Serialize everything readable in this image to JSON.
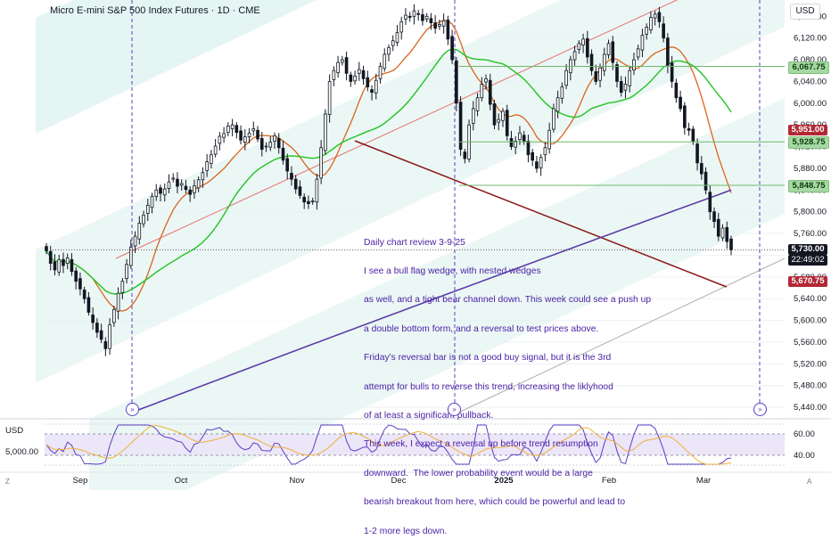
{
  "header": {
    "title": "Micro E-mini S&P 500 Index Futures · 1D · CME",
    "currency": "USD"
  },
  "annotation": {
    "lines": [
      "Daily chart review 3-9-25",
      "I see a bull flag wedge, with nested wedges",
      "as well, and a tight bear channel down. This week could see a push up",
      "a double bottom form, and a reversal to test prices above.",
      "Friday's reversal bar is not a good buy signal, but it is the 3rd",
      "attempt for bulls to reverse this trend, increasing the liklyhood",
      "of at least a significant pullback.",
      "This week, I expect a reversal up before trend resumption",
      "downward.  The lower probability event would be a large",
      "bearish breakout from here, which could be powerful and lead to",
      "1-2 more legs down."
    ]
  },
  "price_labels": [
    {
      "value": "6,067.75",
      "price": 6067.75,
      "style": "green"
    },
    {
      "value": "5,951.00",
      "price": 5951.0,
      "style": "red"
    },
    {
      "value": "5,928.75",
      "price": 5928.75,
      "style": "green"
    },
    {
      "value": "5,848.75",
      "price": 5848.75,
      "style": "green"
    },
    {
      "value": "5,730.00",
      "price": 5730.0,
      "style": "dark"
    },
    {
      "value": "22:49:02",
      "price": 5711,
      "style": "time"
    },
    {
      "value": "5,670.75",
      "price": 5670.75,
      "style": "red"
    }
  ],
  "subpanel": {
    "currency": "USD",
    "value_label": "5,000.00",
    "ticks": [
      "60.00",
      "40.00"
    ]
  },
  "chart_data": {
    "type": "candlestick",
    "title": "Micro E-mini S&P 500 Index Futures · 1D · CME",
    "y_axis": {
      "ticks": [
        6160,
        6120,
        6080,
        6040,
        6000,
        5960,
        5920,
        5880,
        5840,
        5800,
        5760,
        5720,
        5680,
        5640,
        5600,
        5560,
        5520,
        5480,
        5440
      ],
      "tick_labels": [
        "6,160.00",
        "6,120.00",
        "6,080.00",
        "6,040.00",
        "6,000.00",
        "5,960.00",
        "5,920.00",
        "5,880.00",
        "5,840.00",
        "5,800.00",
        "5,760.00",
        "5,720.00",
        "5,680.00",
        "5,640.00",
        "5,600.00",
        "5,560.00",
        "5,520.00",
        "5,480.00",
        "5,440.00"
      ],
      "ylim": [
        5427,
        6190
      ]
    },
    "x_axis": {
      "labels": [
        "Sep",
        "Oct",
        "Nov",
        "Dec",
        "2025",
        "Feb",
        "Mar"
      ]
    },
    "grid": true,
    "closes": [
      5728,
      5705,
      5693,
      5712,
      5701,
      5715,
      5690,
      5672,
      5658,
      5640,
      5615,
      5596,
      5578,
      5565,
      5548,
      5592,
      5620,
      5650,
      5672,
      5703,
      5735,
      5755,
      5779,
      5794,
      5812,
      5828,
      5840,
      5834,
      5842,
      5855,
      5862,
      5847,
      5852,
      5841,
      5832,
      5848,
      5859,
      5872,
      5892,
      5905,
      5921,
      5939,
      5944,
      5958,
      5960,
      5946,
      5932,
      5938,
      5945,
      5953,
      5934,
      5915,
      5921,
      5928,
      5940,
      5918,
      5895,
      5875,
      5860,
      5842,
      5830,
      5818,
      5815,
      5820,
      5860,
      5918,
      5980,
      6040,
      6060,
      6075,
      6080,
      6055,
      6040,
      6050,
      6062,
      6045,
      6030,
      6020,
      6042,
      6068,
      6090,
      6102,
      6115,
      6130,
      6150,
      6162,
      6158,
      6170,
      6164,
      6152,
      6160,
      6148,
      6138,
      6145,
      6152,
      6118,
      6080,
      6000,
      5915,
      5898,
      5960,
      5990,
      6010,
      6035,
      6045,
      5998,
      5960,
      5970,
      5985,
      5940,
      5920,
      5930,
      5945,
      5930,
      5905,
      5895,
      5880,
      5900,
      5918,
      5950,
      5990,
      6010,
      6030,
      6060,
      6080,
      6095,
      6110,
      6118,
      6085,
      6060,
      6040,
      6065,
      6090,
      6110,
      6075,
      6040,
      6020,
      6035,
      6060,
      6080,
      6100,
      6125,
      6140,
      6158,
      6164,
      6150,
      6120,
      6070,
      6040,
      6010,
      5990,
      5955,
      5950,
      5930,
      5890,
      5870,
      5840,
      5800,
      5782,
      5755,
      5770,
      5745,
      5730
    ],
    "volume_profile_levels": [
      6067.75,
      5928.75,
      5848.75
    ],
    "price_levels": {
      "last": 5730.0,
      "ema_20": 5951.0,
      "ema_200": 5848.75,
      "low": 5670.75
    },
    "rsi": {
      "levels": [
        60,
        40
      ]
    }
  }
}
